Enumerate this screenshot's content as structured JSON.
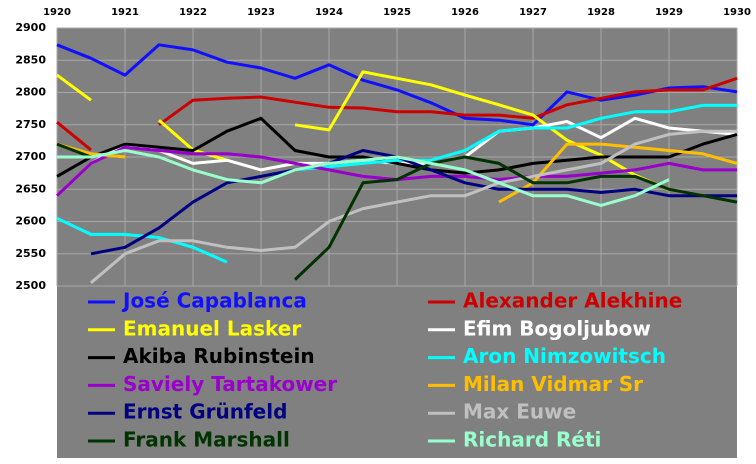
{
  "chart_data": {
    "type": "line",
    "grid": true,
    "legend": "bottom",
    "x": [
      1920,
      1920.5,
      1921,
      1921.5,
      1922,
      1922.5,
      1923,
      1923.5,
      1924,
      1924.5,
      1925,
      1925.5,
      1926,
      1926.5,
      1927,
      1927.5,
      1928,
      1928.5,
      1929,
      1929.5,
      1930
    ],
    "xlim": [
      1920,
      1930
    ],
    "xticks": [
      1920,
      1921,
      1922,
      1923,
      1924,
      1925,
      1926,
      1927,
      1928,
      1929,
      1930
    ],
    "ylim": [
      2500,
      2900
    ],
    "yticks": [
      2500,
      2550,
      2600,
      2650,
      2700,
      2750,
      2800,
      2850,
      2900
    ],
    "series": [
      {
        "name": "José Capablanca",
        "color": "#1010ff",
        "values": [
          2874,
          2853,
          2827,
          2874,
          2866,
          2847,
          2838,
          2822,
          2843,
          2819,
          2804,
          2784,
          2760,
          2757,
          2750,
          2801,
          2788,
          2796,
          2807,
          2809,
          2801
        ]
      },
      {
        "name": "Alexander Alekhine",
        "color": "#cc0000",
        "values": [
          2754,
          2711,
          null,
          2750,
          2788,
          2791,
          2793,
          2785,
          2777,
          2776,
          2770,
          2770,
          2765,
          2765,
          2760,
          2781,
          2791,
          2801,
          2804,
          2804,
          2822
        ]
      },
      {
        "name": "Emanuel Lasker",
        "color": "#ffff00",
        "values": [
          2827,
          2788,
          null,
          2757,
          2711,
          2695,
          null,
          2750,
          2742,
          2832,
          2822,
          2812,
          2796,
          2781,
          2765,
          2726,
          2703,
          2672,
          2649,
          null,
          null
        ]
      },
      {
        "name": "Efim Bogoljubow",
        "color": "#ffffff",
        "values": [
          null,
          2690,
          2720,
          2710,
          2690,
          2695,
          2680,
          2690,
          2690,
          2695,
          2690,
          2690,
          2700,
          2740,
          2745,
          2755,
          2730,
          2760,
          2745,
          2740,
          2735
        ]
      },
      {
        "name": "Akiba Rubinstein",
        "color": "#000000",
        "values": [
          2670,
          2700,
          2720,
          2715,
          2710,
          2740,
          2760,
          2710,
          2700,
          2700,
          2690,
          2680,
          2675,
          2680,
          2690,
          2695,
          2700,
          2700,
          2700,
          2720,
          2735
        ]
      },
      {
        "name": "Aron Nimzowitsch",
        "color": "#00ffff",
        "values": [
          2605,
          2580,
          2580,
          2575,
          2560,
          2537,
          null,
          2680,
          2685,
          2690,
          2695,
          2695,
          2710,
          2740,
          2745,
          2745,
          2760,
          2770,
          2770,
          2780,
          2780
        ]
      },
      {
        "name": "Saviely Tartakower",
        "color": "#9900cc",
        "values": [
          2640,
          2690,
          2715,
          2710,
          2705,
          2705,
          2700,
          2690,
          2680,
          2670,
          2665,
          2670,
          2670,
          2665,
          2670,
          2670,
          2675,
          2680,
          2690,
          2680,
          2680
        ]
      },
      {
        "name": "Milan Vidmar Sr",
        "color": "#ffbf00",
        "values": [
          2720,
          2705,
          2700,
          null,
          null,
          null,
          null,
          null,
          null,
          null,
          null,
          null,
          null,
          2630,
          2660,
          2720,
          2720,
          2715,
          2710,
          2705,
          2690
        ]
      },
      {
        "name": "Ernst Grünfeld",
        "color": "#000080",
        "values": [
          null,
          2550,
          2560,
          2590,
          2630,
          2660,
          2670,
          2680,
          2690,
          2710,
          2700,
          2680,
          2660,
          2650,
          2650,
          2650,
          2645,
          2650,
          2640,
          2640,
          2640
        ]
      },
      {
        "name": "Max Euwe",
        "color": "#c0c0c0",
        "values": [
          null,
          2505,
          2550,
          2570,
          2570,
          2560,
          2555,
          2560,
          2600,
          2620,
          2630,
          2640,
          2640,
          2660,
          2670,
          2680,
          2690,
          2720,
          2735,
          2740,
          2740
        ]
      },
      {
        "name": "Frank Marshall",
        "color": "#003300",
        "values": [
          2720,
          2700,
          null,
          null,
          null,
          null,
          null,
          2510,
          2560,
          2660,
          2665,
          2690,
          2700,
          2690,
          2660,
          2660,
          2670,
          2670,
          2650,
          2640,
          2630
        ]
      },
      {
        "name": "Richard Réti",
        "color": "#99ffcc",
        "values": [
          2700,
          2700,
          2710,
          2700,
          2680,
          2665,
          2660,
          2680,
          2690,
          2695,
          2700,
          2690,
          2680,
          2660,
          2640,
          2640,
          2625,
          2640,
          2665,
          null,
          null
        ]
      }
    ]
  }
}
